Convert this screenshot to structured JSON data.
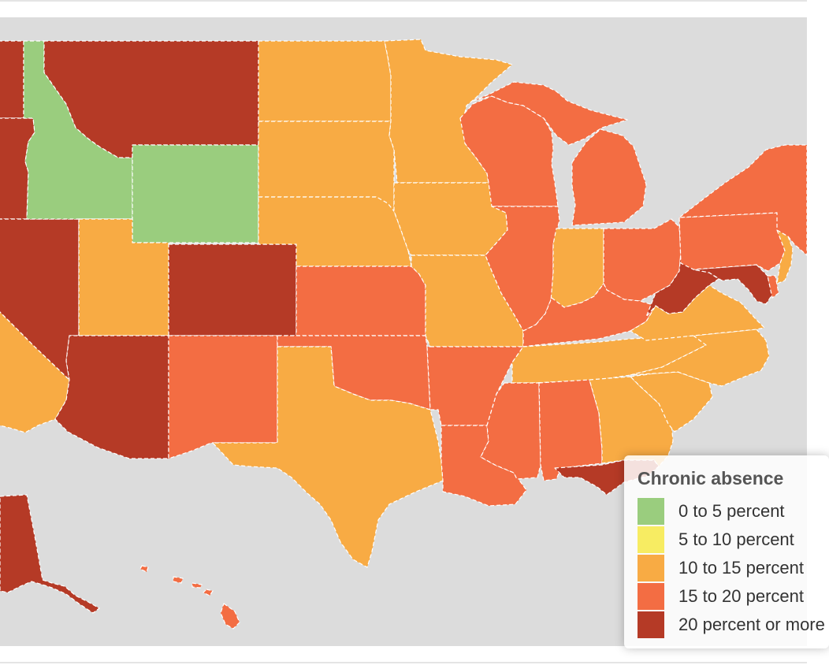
{
  "legend": {
    "title": "Chronic absence",
    "items": [
      {
        "label": "0 to 5 percent",
        "color": "#9acd7e"
      },
      {
        "label": "5 to 10 percent",
        "color": "#f7ec62"
      },
      {
        "label": "10 to 15 percent",
        "color": "#f8ab44"
      },
      {
        "label": "15 to 20 percent",
        "color": "#f36d43"
      },
      {
        "label": "20 percent or more",
        "color": "#b53a26"
      }
    ]
  },
  "colors": {
    "background": "#dcdcdc",
    "border": "#ffffff"
  },
  "states": [
    {
      "name": "Washington",
      "bin": 4
    },
    {
      "name": "Oregon",
      "bin": 4
    },
    {
      "name": "California",
      "bin": 2
    },
    {
      "name": "Nevada",
      "bin": 4
    },
    {
      "name": "Idaho",
      "bin": 0
    },
    {
      "name": "Montana",
      "bin": 4
    },
    {
      "name": "Wyoming",
      "bin": 0
    },
    {
      "name": "Utah",
      "bin": 2
    },
    {
      "name": "Arizona",
      "bin": 4
    },
    {
      "name": "Colorado",
      "bin": 4
    },
    {
      "name": "New Mexico",
      "bin": 3
    },
    {
      "name": "North Dakota",
      "bin": 2
    },
    {
      "name": "South Dakota",
      "bin": 2
    },
    {
      "name": "Nebraska",
      "bin": 2
    },
    {
      "name": "Kansas",
      "bin": 3
    },
    {
      "name": "Oklahoma",
      "bin": 3
    },
    {
      "name": "Texas",
      "bin": 2
    },
    {
      "name": "Minnesota",
      "bin": 2
    },
    {
      "name": "Iowa",
      "bin": 2
    },
    {
      "name": "Missouri",
      "bin": 2
    },
    {
      "name": "Arkansas",
      "bin": 3
    },
    {
      "name": "Louisiana",
      "bin": 3
    },
    {
      "name": "Wisconsin",
      "bin": 3
    },
    {
      "name": "Illinois",
      "bin": 3
    },
    {
      "name": "Michigan",
      "bin": 3
    },
    {
      "name": "Indiana",
      "bin": 2
    },
    {
      "name": "Ohio",
      "bin": 3
    },
    {
      "name": "Kentucky",
      "bin": 3
    },
    {
      "name": "Tennessee",
      "bin": 2
    },
    {
      "name": "Mississippi",
      "bin": 3
    },
    {
      "name": "Alabama",
      "bin": 3
    },
    {
      "name": "Georgia",
      "bin": 2
    },
    {
      "name": "Florida",
      "bin": 4
    },
    {
      "name": "South Carolina",
      "bin": 2
    },
    {
      "name": "North Carolina",
      "bin": 2
    },
    {
      "name": "Virginia",
      "bin": 2
    },
    {
      "name": "West Virginia",
      "bin": 4
    },
    {
      "name": "Maryland",
      "bin": 4
    },
    {
      "name": "Delaware",
      "bin": 3
    },
    {
      "name": "Pennsylvania",
      "bin": 3
    },
    {
      "name": "New Jersey",
      "bin": 2
    },
    {
      "name": "New York",
      "bin": 3
    },
    {
      "name": "Alaska",
      "bin": 4
    },
    {
      "name": "Hawaii",
      "bin": 3
    }
  ]
}
